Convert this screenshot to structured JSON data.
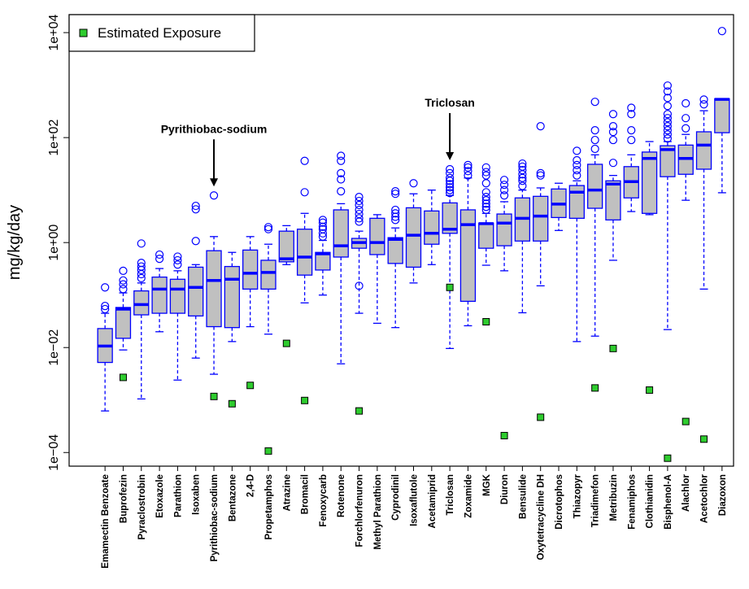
{
  "chart_data": {
    "type": "box",
    "y_label": "mg/kg/day",
    "log_y": true,
    "ylim": [
      5.5e-05,
      22000
    ],
    "yticks": [
      {
        "value": 0.0001,
        "label": "1e−04"
      },
      {
        "value": 0.01,
        "label": "1e−02"
      },
      {
        "value": 1,
        "label": "1e+00"
      },
      {
        "value": 100,
        "label": "1e+02"
      },
      {
        "value": 10000,
        "label": "1e+04"
      }
    ],
    "box_fill": "#c0c0c0",
    "box_color": "#0000ff",
    "legend": "top-left",
    "annotations": [
      "Pyrithiobac-sodium",
      "Triclosan"
    ],
    "categories": [
      "Emamectin Benzoate",
      "Buprofezin",
      "Pyraclostrobin",
      "Etoxazole",
      "Parathion",
      "Isoxaben",
      "Pyrithiobac-sodium",
      "Bentazone",
      "2,4-D",
      "Propetamphos",
      "Atrazine",
      "Bromacil",
      "Fenoxycarb",
      "Rotenone",
      "Forchlorfenuron",
      "Methyl Parathion",
      "Cyprodinil",
      "Isoxaflutole",
      "Acetamiprid",
      "Triclosan",
      "Zoxamide",
      "MGK",
      "Diuron",
      "Bensulide",
      "Oxytetracycline DH",
      "Dicrotophos",
      "Thiazopyr",
      "Triadimefon",
      "Metribuzin",
      "Fenamiphos",
      "Clothianidin",
      "Bisphenol-A",
      "Alachlor",
      "Acetochlor",
      "Diazoxon"
    ],
    "boxes": [
      {
        "low": 0.00062,
        "q1": 0.0052,
        "median": 0.0107,
        "q3": 0.023,
        "high": 0.045,
        "outliers": [
          0.054,
          0.062,
          0.14
        ]
      },
      {
        "low": 0.009,
        "q1": 0.015,
        "median": 0.054,
        "q3": 0.058,
        "high": 0.11,
        "outliers": [
          0.13,
          0.16,
          0.19,
          0.29
        ]
      },
      {
        "low": 0.00105,
        "q1": 0.042,
        "median": 0.066,
        "q3": 0.12,
        "high": 0.17,
        "outliers": [
          0.21,
          0.25,
          0.3,
          0.35,
          0.41,
          0.96
        ]
      },
      {
        "low": 0.02,
        "q1": 0.045,
        "median": 0.13,
        "q3": 0.22,
        "high": 0.32,
        "outliers": [
          0.49,
          0.59
        ]
      },
      {
        "low": 0.0024,
        "q1": 0.045,
        "median": 0.13,
        "q3": 0.2,
        "high": 0.29,
        "outliers": [
          0.38,
          0.46,
          0.54
        ]
      },
      {
        "low": 0.0063,
        "q1": 0.04,
        "median": 0.14,
        "q3": 0.34,
        "high": 0.38,
        "outliers": [
          1.07,
          4.3,
          5
        ]
      },
      {
        "low": 0.0031,
        "q1": 0.025,
        "median": 0.19,
        "q3": 0.7,
        "high": 1.3,
        "outliers": [
          7.9
        ]
      },
      {
        "low": 0.013,
        "q1": 0.024,
        "median": 0.2,
        "q3": 0.35,
        "high": 0.65,
        "outliers": []
      },
      {
        "low": 0.025,
        "q1": 0.13,
        "median": 0.26,
        "q3": 0.72,
        "high": 1.3,
        "outliers": []
      },
      {
        "low": 0.018,
        "q1": 0.13,
        "median": 0.27,
        "q3": 0.46,
        "high": 0.93,
        "outliers": [
          1.8,
          1.97
        ]
      },
      {
        "low": 0.38,
        "q1": 0.43,
        "median": 0.49,
        "q3": 1.65,
        "high": 2.1,
        "outliers": []
      },
      {
        "low": 0.071,
        "q1": 0.24,
        "median": 0.53,
        "q3": 1.8,
        "high": 3.6,
        "outliers": [
          9.1,
          36
        ]
      },
      {
        "low": 0.1,
        "q1": 0.3,
        "median": 0.61,
        "q3": 0.65,
        "high": 1.1,
        "outliers": [
          1.3,
          1.5,
          1.8,
          2,
          2.4,
          2.7
        ]
      },
      {
        "low": 0.0049,
        "q1": 0.53,
        "median": 0.87,
        "q3": 4.2,
        "high": 5.5,
        "outliers": [
          9.5,
          16,
          21,
          36,
          45
        ]
      },
      {
        "low": 0.045,
        "q1": 0.78,
        "median": 1,
        "q3": 1.2,
        "high": 1.65,
        "outliers": [
          0.15,
          2.5,
          2.9,
          3.5,
          4.2,
          5.2,
          6.2,
          7.4
        ]
      },
      {
        "low": 0.029,
        "q1": 0.59,
        "median": 1,
        "q3": 2.9,
        "high": 3.4,
        "outliers": []
      },
      {
        "low": 0.024,
        "q1": 0.4,
        "median": 1.15,
        "q3": 1.24,
        "high": 1.9,
        "outliers": [
          2.7,
          3.1,
          3.6,
          4.2,
          8.5,
          9.5
        ]
      },
      {
        "low": 0.17,
        "q1": 0.34,
        "median": 1.38,
        "q3": 4.6,
        "high": 8.5,
        "outliers": [
          13.5
        ]
      },
      {
        "low": 0.38,
        "q1": 0.93,
        "median": 1.5,
        "q3": 4,
        "high": 10,
        "outliers": []
      },
      {
        "low": 0.0096,
        "q1": 1.5,
        "median": 1.8,
        "q3": 5.7,
        "high": 7.9,
        "outliers": [
          8.8,
          10,
          11.3,
          13,
          15,
          17,
          21,
          25
        ]
      },
      {
        "low": 0.026,
        "q1": 0.076,
        "median": 2.2,
        "q3": 4.2,
        "high": 17,
        "outliers": [
          19,
          23,
          27,
          30
        ]
      },
      {
        "low": 0.37,
        "q1": 0.78,
        "median": 2.3,
        "q3": 2.35,
        "high": 3.6,
        "outliers": [
          4.2,
          4.8,
          5.5,
          6.4,
          7.4,
          9.1,
          13.5,
          19,
          22,
          27
        ]
      },
      {
        "low": 0.29,
        "q1": 0.87,
        "median": 2.35,
        "q3": 3.5,
        "high": 6,
        "outliers": [
          7.9,
          10,
          12.6,
          15.6
        ]
      },
      {
        "low": 0.046,
        "q1": 1.07,
        "median": 2.9,
        "q3": 7.1,
        "high": 10,
        "outliers": [
          12,
          15,
          17,
          20,
          24,
          28,
          32
        ]
      },
      {
        "low": 0.15,
        "q1": 1.07,
        "median": 3.2,
        "q3": 7.6,
        "high": 11,
        "outliers": [
          19,
          21,
          165
        ]
      },
      {
        "low": 1.7,
        "q1": 3,
        "median": 5.4,
        "q3": 10.5,
        "high": 13.5,
        "outliers": []
      },
      {
        "low": 0.013,
        "q1": 2.9,
        "median": 9.1,
        "q3": 12.2,
        "high": 15,
        "outliers": [
          19,
          24,
          30,
          37,
          56
        ]
      },
      {
        "low": 0.0165,
        "q1": 4.5,
        "median": 10,
        "q3": 31,
        "high": 47,
        "outliers": [
          61,
          90,
          138,
          480
        ]
      },
      {
        "low": 0.46,
        "q1": 2.7,
        "median": 13,
        "q3": 15,
        "high": 19,
        "outliers": [
          33,
          90,
          128,
          165,
          280
        ]
      },
      {
        "low": 3.9,
        "q1": 7.1,
        "median": 14.5,
        "q3": 28,
        "high": 47,
        "outliers": [
          90,
          138,
          280,
          370
        ]
      },
      {
        "low": 3.4,
        "q1": 3.6,
        "median": 40,
        "q3": 53,
        "high": 84,
        "outliers": []
      },
      {
        "low": 0.022,
        "q1": 18,
        "median": 59,
        "q3": 70,
        "high": 84,
        "outliers": [
          96,
          115,
          138,
          165,
          196,
          235,
          280,
          400,
          570,
          760,
          980
        ]
      },
      {
        "low": 6.4,
        "q1": 20,
        "median": 40,
        "q3": 72,
        "high": 115,
        "outliers": [
          150,
          235,
          450
        ]
      },
      {
        "low": 0.13,
        "q1": 25,
        "median": 72,
        "q3": 129,
        "high": 325,
        "outliers": [
          430,
          530
        ]
      },
      {
        "low": 8.9,
        "q1": 124,
        "median": 535,
        "q3": 550,
        "high": 550,
        "outliers": [
          10700
        ]
      }
    ],
    "exposure": {
      "name": "Estimated Exposure",
      "color": "#2ecc2e",
      "values": [
        null,
        0.0027,
        null,
        null,
        null,
        null,
        0.00117,
        0.00085,
        0.0019,
        0.000107,
        0.012,
        0.00098,
        null,
        null,
        0.00062,
        null,
        null,
        null,
        null,
        0.14,
        null,
        0.031,
        0.00021,
        null,
        0.00047,
        null,
        null,
        0.0017,
        0.0096,
        null,
        0.00155,
        7.8e-05,
        0.00039,
        0.00018,
        null
      ]
    }
  }
}
